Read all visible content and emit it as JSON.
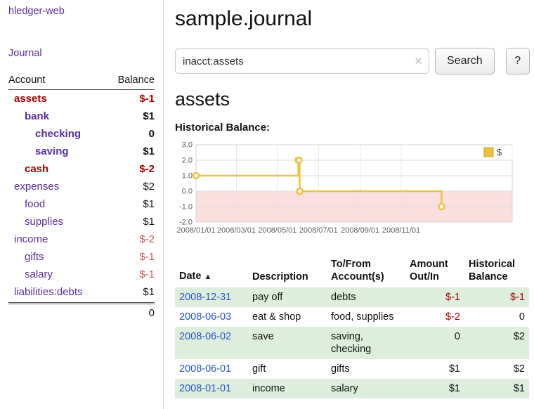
{
  "colors": {
    "accent_purple": "#5b2d9b",
    "negative_dark": "#a40000",
    "negative_soft": "#c05757",
    "link_blue": "#2a55cc",
    "row_green": "#ddefdc"
  },
  "sidebar": {
    "app_title": "hledger-web",
    "journal_label": "Journal",
    "accounts_table": {
      "headers": [
        "Account",
        "Balance"
      ],
      "rows": [
        {
          "name": "assets",
          "indent": 1,
          "balance": "$-1",
          "bold": true,
          "name_color": "red",
          "balance_color": "red"
        },
        {
          "name": "bank",
          "indent": 2,
          "balance": "$1",
          "bold": true,
          "name_color": "purple",
          "balance_color": "black"
        },
        {
          "name": "checking",
          "indent": 3,
          "balance": "0",
          "bold": true,
          "name_color": "purple",
          "balance_color": "black"
        },
        {
          "name": "saving",
          "indent": 3,
          "balance": "$1",
          "bold": true,
          "name_color": "purple",
          "balance_color": "black"
        },
        {
          "name": "cash",
          "indent": 2,
          "balance": "$-2",
          "bold": true,
          "name_color": "red",
          "balance_color": "red"
        },
        {
          "name": "expenses",
          "indent": 1,
          "balance": "$2",
          "bold": false,
          "name_color": "purple",
          "balance_color": "black"
        },
        {
          "name": "food",
          "indent": 2,
          "balance": "$1",
          "bold": false,
          "name_color": "purple",
          "balance_color": "black"
        },
        {
          "name": "supplies",
          "indent": 2,
          "balance": "$1",
          "bold": false,
          "name_color": "purple",
          "balance_color": "black"
        },
        {
          "name": "income",
          "indent": 1,
          "balance": "$-2",
          "bold": false,
          "name_color": "purple",
          "balance_color": "softred"
        },
        {
          "name": "gifts",
          "indent": 2,
          "balance": "$-1",
          "bold": false,
          "name_color": "purple",
          "balance_color": "softred"
        },
        {
          "name": "salary",
          "indent": 2,
          "balance": "$-1",
          "bold": false,
          "name_color": "purple",
          "balance_color": "softred"
        },
        {
          "name": "liabilities:debts",
          "indent": 1,
          "balance": "$1",
          "bold": false,
          "name_color": "purple",
          "balance_color": "black"
        }
      ],
      "total": "0"
    }
  },
  "header": {
    "title": "sample.journal"
  },
  "search": {
    "value": "inacct:assets",
    "clear_icon": "✕",
    "button_label": "Search",
    "help_label": "?"
  },
  "main": {
    "account_heading": "assets",
    "chart_label": "Historical Balance:"
  },
  "chart_data": {
    "type": "line",
    "title": "Historical Balance",
    "step": true,
    "grid": true,
    "legend_position": "top-right",
    "negative_region_color": "#fbdede",
    "x_range": [
      "2008-01-01",
      "2009-04-15"
    ],
    "y_range": [
      -2,
      3
    ],
    "y_ticks": [
      3,
      2,
      1,
      0,
      -1,
      -2
    ],
    "x_ticks": [
      {
        "label": "2008/01/01",
        "date": "2008-01-01"
      },
      {
        "label": "2008/03/01",
        "date": "2008-03-01"
      },
      {
        "label": "2008/05/01",
        "date": "2008-05-01"
      },
      {
        "label": "2008/07/01",
        "date": "2008-07-01"
      },
      {
        "label": "2008/09/01",
        "date": "2008-09-01"
      },
      {
        "label": "2008/11/01",
        "date": "2008-11-01"
      }
    ],
    "series": [
      {
        "name": "$",
        "color": "#edc240",
        "points": [
          {
            "date": "2008-01-01",
            "value": 1
          },
          {
            "date": "2008-06-01",
            "value": 2
          },
          {
            "date": "2008-06-02",
            "value": 2
          },
          {
            "date": "2008-06-03",
            "value": 0
          },
          {
            "date": "2008-12-31",
            "value": -1
          }
        ]
      }
    ]
  },
  "transactions": {
    "sort_icon": "▲",
    "headers": {
      "date": "Date",
      "description": "Description",
      "tofrom": "To/From Account(s)",
      "amount": "Amount Out/In",
      "balance": "Historical Balance"
    },
    "rows": [
      {
        "date": "2008-12-31",
        "description": "pay off",
        "accounts": "debts",
        "amount": "$-1",
        "amount_color": "red",
        "balance": "$-1",
        "balance_color": "red",
        "shade": true
      },
      {
        "date": "2008-06-03",
        "description": "eat & shop",
        "accounts": "food, supplies",
        "amount": "$-2",
        "amount_color": "red",
        "balance": "0",
        "balance_color": "black",
        "shade": false
      },
      {
        "date": "2008-06-02",
        "description": "save",
        "accounts": "saving, checking",
        "amount": "0",
        "amount_color": "black",
        "balance": "$2",
        "balance_color": "black",
        "shade": true
      },
      {
        "date": "2008-06-01",
        "description": "gift",
        "accounts": "gifts",
        "amount": "$1",
        "amount_color": "black",
        "balance": "$2",
        "balance_color": "black",
        "shade": false
      },
      {
        "date": "2008-01-01",
        "description": "income",
        "accounts": "salary",
        "amount": "$1",
        "amount_color": "black",
        "balance": "$1",
        "balance_color": "black",
        "shade": true
      }
    ]
  }
}
